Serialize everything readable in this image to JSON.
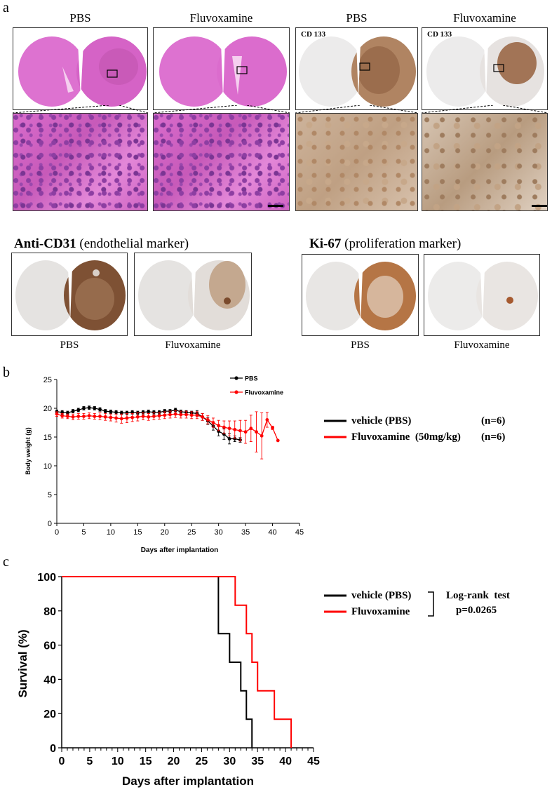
{
  "panels": {
    "a": {
      "letter": "a",
      "top_titles": [
        "PBS",
        "Fluvoxamine",
        "PBS",
        "Fluvoxamine"
      ],
      "ihc_tag": "CD 133",
      "marker1": {
        "bold": "Anti-CD31",
        "rest": " (endothelial marker)"
      },
      "marker2": {
        "bold": "Ki-67",
        "rest": " (proliferation marker)"
      },
      "bottom_captions": [
        "PBS",
        "Fluvoxamine",
        "PBS",
        "Fluvoxamine"
      ],
      "colors": {
        "he": "#db6fcf",
        "brown": "#8a5a3c"
      }
    },
    "b": {
      "letter": "b"
    },
    "c": {
      "letter": "c"
    }
  },
  "chart_data": [
    {
      "type": "line",
      "panel": "b",
      "xlabel": "Days after implantation",
      "ylabel": "Body weight (g)",
      "xlim": [
        0,
        45
      ],
      "ylim": [
        0,
        25
      ],
      "xticks": [
        0,
        5,
        10,
        15,
        20,
        25,
        30,
        35,
        40,
        45
      ],
      "yticks": [
        0,
        5,
        10,
        15,
        20,
        25
      ],
      "legend_inner": [
        "PBS",
        "Fluvoxamine"
      ],
      "legend_outer": [
        {
          "label": "vehicle (PBS)",
          "n": "(n=6)"
        },
        {
          "label": "Fluvoxamine  (50mg/kg)",
          "n": "(n=6)"
        }
      ],
      "series": [
        {
          "name": "PBS",
          "color": "#000000",
          "x": [
            0,
            1,
            2,
            3,
            4,
            5,
            6,
            7,
            8,
            9,
            10,
            11,
            12,
            13,
            14,
            15,
            16,
            17,
            18,
            19,
            20,
            21,
            22,
            23,
            24,
            25,
            26,
            27,
            28,
            29,
            30,
            31,
            32,
            33,
            34
          ],
          "y": [
            19.4,
            19.3,
            19.2,
            19.5,
            19.7,
            20.0,
            20.1,
            20.0,
            19.8,
            19.5,
            19.4,
            19.3,
            19.2,
            19.2,
            19.3,
            19.2,
            19.3,
            19.4,
            19.3,
            19.3,
            19.5,
            19.5,
            19.7,
            19.4,
            19.3,
            19.2,
            19.1,
            18.5,
            17.8,
            16.9,
            16.0,
            15.5,
            14.7,
            14.7,
            14.5
          ],
          "err": [
            0.3,
            0.3,
            0.3,
            0.3,
            0.3,
            0.3,
            0.3,
            0.3,
            0.3,
            0.3,
            0.3,
            0.3,
            0.3,
            0.3,
            0.3,
            0.3,
            0.3,
            0.3,
            0.3,
            0.3,
            0.3,
            0.3,
            0.3,
            0.3,
            0.3,
            0.3,
            0.5,
            0.6,
            0.6,
            0.7,
            0.8,
            0.9,
            0.9,
            0.5,
            0.4
          ]
        },
        {
          "name": "Fluvoxamine",
          "color": "#ff0000",
          "x": [
            0,
            1,
            2,
            3,
            4,
            5,
            6,
            7,
            8,
            9,
            10,
            11,
            12,
            13,
            14,
            15,
            16,
            17,
            18,
            19,
            20,
            21,
            22,
            23,
            24,
            25,
            26,
            27,
            28,
            29,
            30,
            31,
            32,
            33,
            34,
            35,
            36,
            37,
            38,
            39,
            40,
            41
          ],
          "y": [
            19.0,
            18.7,
            18.6,
            18.5,
            18.6,
            18.6,
            18.7,
            18.6,
            18.6,
            18.5,
            18.4,
            18.3,
            18.2,
            18.3,
            18.4,
            18.5,
            18.6,
            18.5,
            18.6,
            18.7,
            18.8,
            18.9,
            19.0,
            18.9,
            18.9,
            18.8,
            18.8,
            18.5,
            18.0,
            17.5,
            17.0,
            16.7,
            16.5,
            16.3,
            16.1,
            15.9,
            16.5,
            15.9,
            15.2,
            18.0,
            16.6,
            14.4
          ],
          "err": [
            0.4,
            0.4,
            0.4,
            0.5,
            0.5,
            0.5,
            0.5,
            0.5,
            0.6,
            0.6,
            0.6,
            0.7,
            0.8,
            0.8,
            0.7,
            0.7,
            0.6,
            0.6,
            0.6,
            0.6,
            0.6,
            0.6,
            0.6,
            0.6,
            0.6,
            0.6,
            0.6,
            0.6,
            0.7,
            0.8,
            0.9,
            1.1,
            1.3,
            1.5,
            1.8,
            2.0,
            2.3,
            3.5,
            4.0,
            1.3,
            0.3,
            0.0
          ]
        }
      ]
    },
    {
      "type": "line",
      "panel": "c",
      "step": true,
      "xlabel": "Days after implantation",
      "ylabel": "Survival (%)",
      "xlim": [
        0,
        45
      ],
      "ylim": [
        0,
        100
      ],
      "xticks": [
        0,
        5,
        10,
        15,
        20,
        25,
        30,
        35,
        40,
        45
      ],
      "yticks": [
        0,
        20,
        40,
        60,
        80,
        100
      ],
      "legend": [
        "vehicle (PBS)",
        "Fluvoxamine"
      ],
      "annotation": [
        "Log-rank  test",
        "p=0.0265"
      ],
      "series": [
        {
          "name": "vehicle (PBS)",
          "color": "#000000",
          "x": [
            0,
            28,
            30,
            32,
            33,
            34
          ],
          "y": [
            100,
            66.7,
            50,
            33.3,
            16.7,
            0
          ]
        },
        {
          "name": "Fluvoxamine",
          "color": "#ff0000",
          "x": [
            0,
            31,
            33,
            34,
            35,
            38,
            41
          ],
          "y": [
            100,
            83.3,
            66.7,
            50,
            33.3,
            16.7,
            0
          ]
        }
      ]
    }
  ]
}
